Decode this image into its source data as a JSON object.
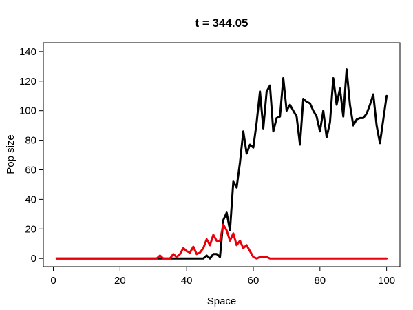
{
  "chart_data": {
    "type": "line",
    "title": "t = 344.05",
    "xlabel": "Space",
    "ylabel": "Pop size",
    "xlim": [
      -3,
      104
    ],
    "ylim": [
      -5.5,
      146
    ],
    "xticks": [
      0,
      20,
      40,
      60,
      80,
      100
    ],
    "yticks": [
      0,
      20,
      40,
      60,
      80,
      100,
      120,
      140
    ],
    "grid": false,
    "series": [
      {
        "color": "#000000",
        "x": [
          1,
          2,
          3,
          4,
          5,
          6,
          7,
          8,
          9,
          10,
          11,
          12,
          13,
          14,
          15,
          16,
          17,
          18,
          19,
          20,
          21,
          22,
          23,
          24,
          25,
          26,
          27,
          28,
          29,
          30,
          31,
          32,
          33,
          34,
          35,
          36,
          37,
          38,
          39,
          40,
          41,
          42,
          43,
          44,
          45,
          46,
          47,
          48,
          49,
          50,
          51,
          52,
          53,
          54,
          55,
          56,
          57,
          58,
          59,
          60,
          61,
          62,
          63,
          64,
          65,
          66,
          67,
          68,
          69,
          70,
          71,
          72,
          73,
          74,
          75,
          76,
          77,
          78,
          79,
          80,
          81,
          82,
          83,
          84,
          85,
          86,
          87,
          88,
          89,
          90,
          91,
          92,
          93,
          94,
          95,
          96,
          97,
          98,
          99,
          100
        ],
        "values": [
          0,
          0,
          0,
          0,
          0,
          0,
          0,
          0,
          0,
          0,
          0,
          0,
          0,
          0,
          0,
          0,
          0,
          0,
          0,
          0,
          0,
          0,
          0,
          0,
          0,
          0,
          0,
          0,
          0,
          0,
          0,
          0,
          0,
          0,
          0,
          0,
          0,
          0,
          0,
          0,
          0,
          0,
          0,
          0,
          0,
          2,
          0,
          3,
          3,
          1,
          26,
          31,
          19,
          52,
          48,
          65,
          86,
          71,
          77,
          75,
          92,
          113,
          88,
          113,
          117,
          86,
          95,
          96,
          122,
          100,
          104,
          100,
          96,
          77,
          108,
          106,
          105,
          100,
          96,
          86,
          100,
          82,
          92,
          122,
          104,
          115,
          96,
          128,
          104,
          90,
          94,
          95,
          95,
          98,
          104,
          111,
          90,
          78,
          94,
          110
        ]
      },
      {
        "color": "#e8000b",
        "x": [
          1,
          2,
          3,
          4,
          5,
          6,
          7,
          8,
          9,
          10,
          11,
          12,
          13,
          14,
          15,
          16,
          17,
          18,
          19,
          20,
          21,
          22,
          23,
          24,
          25,
          26,
          27,
          28,
          29,
          30,
          31,
          32,
          33,
          34,
          35,
          36,
          37,
          38,
          39,
          40,
          41,
          42,
          43,
          44,
          45,
          46,
          47,
          48,
          49,
          50,
          51,
          52,
          53,
          54,
          55,
          56,
          57,
          58,
          59,
          60,
          61,
          62,
          63,
          64,
          65,
          66,
          67,
          68,
          69,
          70,
          71,
          72,
          73,
          74,
          75,
          76,
          77,
          78,
          79,
          80,
          81,
          82,
          83,
          84,
          85,
          86,
          87,
          88,
          89,
          90,
          91,
          92,
          93,
          94,
          95,
          96,
          97,
          98,
          99,
          100
        ],
        "values": [
          0,
          0,
          0,
          0,
          0,
          0,
          0,
          0,
          0,
          0,
          0,
          0,
          0,
          0,
          0,
          0,
          0,
          0,
          0,
          0,
          0,
          0,
          0,
          0,
          0,
          0,
          0,
          0,
          0,
          0,
          0,
          2,
          0,
          0,
          0,
          3,
          1,
          3,
          7,
          5,
          4,
          8,
          3,
          4,
          7,
          13,
          9,
          16,
          12,
          12,
          23,
          19,
          12,
          17,
          9,
          12,
          7,
          9,
          5,
          1,
          0,
          1,
          1,
          1,
          0,
          0,
          0,
          0,
          0,
          0,
          0,
          0,
          0,
          0,
          0,
          0,
          0,
          0,
          0,
          0,
          0,
          0,
          0,
          0,
          0,
          0,
          0,
          0,
          0,
          0,
          0,
          0,
          0,
          0,
          0,
          0,
          0,
          0,
          0,
          0
        ]
      }
    ]
  }
}
